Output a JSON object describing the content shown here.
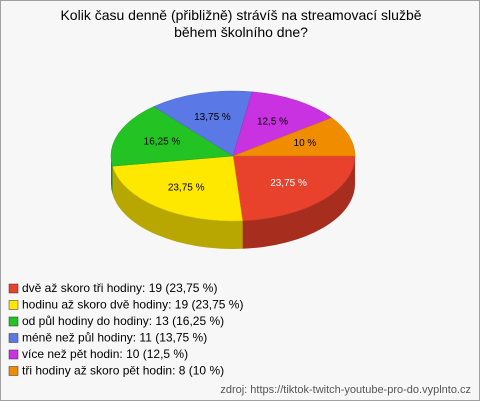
{
  "chart_data": {
    "type": "pie3d",
    "title": "Kolik času denně (přibližně) strávíš na streamovací službě během školního dne?",
    "categories": [
      "dvě až skoro tři hodiny: 19 (23,75 %)",
      "hodinu až skoro dvě hodiny: 19 (23,75 %)",
      "od půl hodiny do hodiny: 13 (16,25 %)",
      "méně než půl hodiny: 11 (13,75 %)",
      "více než pět hodin: 10 (12,5 %)",
      "tři hodiny až skoro pět hodin: 8 (10 %)"
    ],
    "values": [
      23.75,
      23.75,
      16.25,
      13.75,
      12.5,
      10
    ],
    "value_labels": [
      "23,75 %",
      "23,75 %",
      "16,25 %",
      "13,75 %",
      "12,5 %",
      "10 %"
    ],
    "colors": [
      "#e8412c",
      "#ffe800",
      "#22c322",
      "#5a78e6",
      "#c832e0",
      "#f08c00"
    ],
    "source": "zdroj: https://tiktok-twitch-youtube-pro-do.vyplnto.cz"
  }
}
